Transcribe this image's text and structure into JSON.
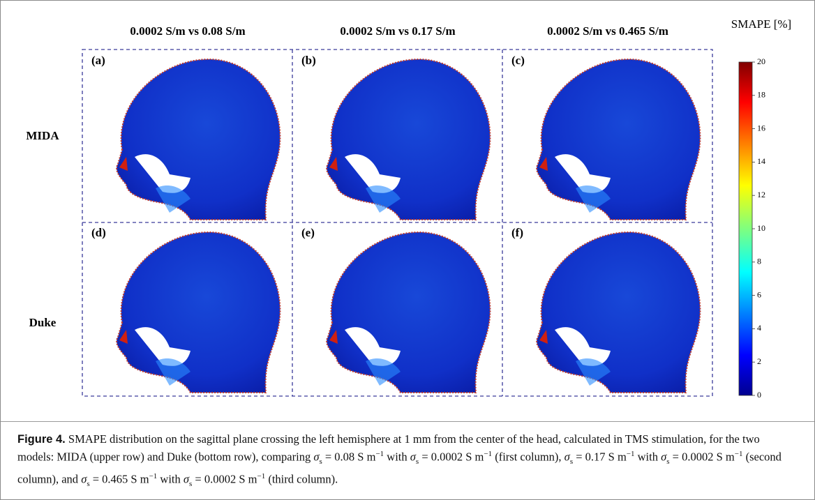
{
  "figure": {
    "column_titles": [
      "0.0002 S/m vs 0.08 S/m",
      "0.0002 S/m vs 0.17 S/m",
      "0.0002 S/m vs 0.465 S/m"
    ],
    "row_labels": [
      "MIDA",
      "Duke"
    ],
    "panel_labels": [
      "(a)",
      "(b)",
      "(c)",
      "(d)",
      "(e)",
      "(f)"
    ],
    "colorbar": {
      "label": "SMAPE [%]",
      "lim": [
        0,
        20
      ],
      "ticks": [
        0,
        2,
        4,
        6,
        8,
        10,
        12,
        14,
        16,
        18,
        20
      ]
    }
  },
  "caption": {
    "label": "Figure 4.",
    "parts": [
      "SMAPE distribution on the sagittal plane crossing the left hemisphere at 1 mm from the center of the head, calculated in TMS stimulation, for the two models: MIDA (upper row) and Duke (bottom row), comparing ",
      "σ",
      "s",
      " = 0.08 S m",
      "−1",
      " with ",
      "σ",
      "s",
      " = 0.0002 S m",
      "−1",
      " (first column), ",
      "σ",
      "s",
      " = 0.17 S m",
      "−1",
      " with ",
      "σ",
      "s",
      " = 0.0002 S m",
      "−1",
      " (second column), and ",
      "σ",
      "s",
      " = 0.465 S m",
      "−1",
      " with ",
      "σ",
      "s",
      " = 0.0002 S m",
      "−1",
      " (third column)."
    ]
  }
}
